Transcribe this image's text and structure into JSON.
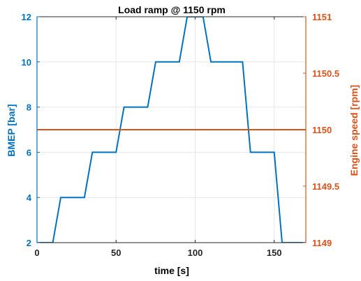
{
  "chart_data": {
    "type": "line",
    "title": "Load ramp @ 1150 rpm",
    "xlabel": "time [s]",
    "ylabel_left": "BMEP [bar]",
    "ylabel_right": "Engine speed [rpm]",
    "xlim": [
      0,
      170
    ],
    "ylim_left": [
      2,
      12
    ],
    "ylim_right": [
      1149,
      1151
    ],
    "xticks": [
      0,
      50,
      100,
      150
    ],
    "xtick_labels": [
      "0",
      "50",
      "100",
      "150"
    ],
    "yticks_left": [
      2,
      4,
      6,
      8,
      10,
      12
    ],
    "ytick_labels_left": [
      "2",
      "4",
      "6",
      "8",
      "10",
      "12"
    ],
    "yticks_right": [
      1149,
      1149.5,
      1150,
      1150.5,
      1151
    ],
    "ytick_labels_right": [
      "1149",
      "1149.5",
      "1150",
      "1150.5",
      "1151"
    ],
    "grid": true,
    "colors": {
      "left": "#0072BD",
      "right": "#D95319",
      "grid": "#e6e6e6",
      "axis": "#262626"
    },
    "series": [
      {
        "axis": "left",
        "x": [
          0,
          10,
          15,
          30,
          35,
          50,
          55,
          70,
          75,
          90,
          95,
          105,
          110,
          130,
          135,
          150,
          155,
          170
        ],
        "y": [
          2,
          2,
          4,
          4,
          6,
          6,
          8,
          8,
          10,
          10,
          12,
          12,
          10,
          10,
          6,
          6,
          2,
          2
        ]
      },
      {
        "axis": "right",
        "x": [
          0,
          170
        ],
        "y": [
          1150,
          1150
        ]
      }
    ]
  }
}
